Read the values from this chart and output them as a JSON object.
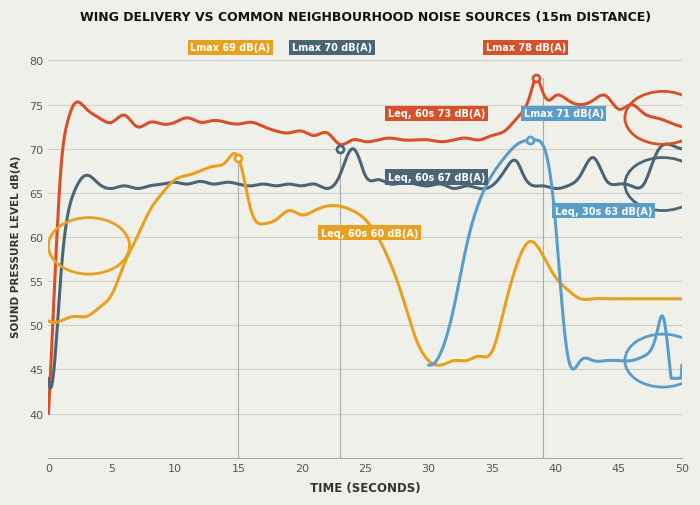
{
  "title": "WING DELIVERY VS COMMON NEIGHBOURHOOD NOISE SOURCES (15m DISTANCE)",
  "xlabel": "TIME (SECONDS)",
  "ylabel": "SOUND PRESSURE LEVEL dB(A)",
  "xlim": [
    0,
    50
  ],
  "ylim": [
    35,
    83
  ],
  "yticks": [
    40,
    45,
    50,
    55,
    60,
    65,
    70,
    75,
    80
  ],
  "xticks": [
    0,
    5,
    10,
    15,
    20,
    25,
    30,
    35,
    40,
    45,
    50
  ],
  "bg_color": "#f0f0eb",
  "grid_color": "#d0d0c8",
  "colors": {
    "red": "#d94f2a",
    "teal": "#4a6575",
    "orange": "#e8a020",
    "blue": "#5b9dc9"
  }
}
